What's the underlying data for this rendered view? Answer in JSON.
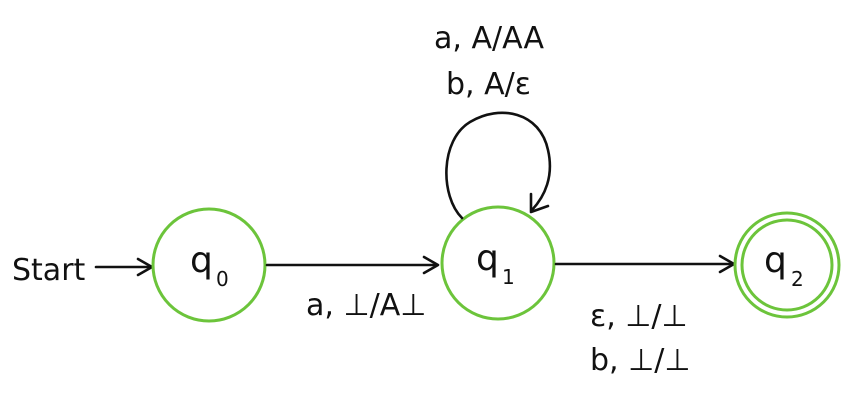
{
  "diagram": {
    "start_label": "Start",
    "states": [
      {
        "id": "q0",
        "label": "q",
        "subscript": "0",
        "accepting": false
      },
      {
        "id": "q1",
        "label": "q",
        "subscript": "1",
        "accepting": false
      },
      {
        "id": "q2",
        "label": "q",
        "subscript": "2",
        "accepting": true
      }
    ],
    "transitions": {
      "q0_q1": [
        "a, ⊥/A⊥"
      ],
      "q1_loop": [
        "a, A/AA",
        "b, A/ε"
      ],
      "q1_q2": [
        "ε, ⊥/⊥",
        "b, ⊥/⊥"
      ]
    },
    "colors": {
      "state_stroke": "#6cc43b",
      "edge": "#111111",
      "text": "#111111",
      "background": "#ffffff"
    }
  }
}
